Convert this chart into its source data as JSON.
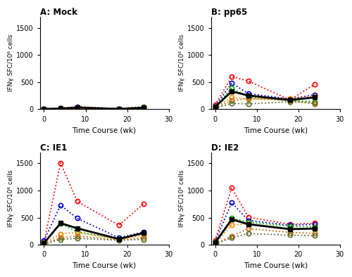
{
  "time_points": [
    0,
    4,
    8,
    18,
    24
  ],
  "panels": {
    "A": {
      "title": "A: Mock",
      "monkeys": [
        [
          10,
          20,
          50,
          10,
          50
        ],
        [
          5,
          15,
          40,
          8,
          30
        ],
        [
          8,
          18,
          35,
          12,
          40
        ],
        [
          6,
          12,
          30,
          6,
          35
        ],
        [
          4,
          10,
          25,
          5,
          20
        ],
        [
          3,
          8,
          20,
          4,
          15
        ]
      ],
      "geo_mean": [
        6,
        13,
        33,
        7,
        30
      ]
    },
    "B": {
      "title": "B: pp65",
      "monkeys": [
        [
          80,
          600,
          520,
          175,
          460
        ],
        [
          60,
          480,
          290,
          190,
          270
        ],
        [
          50,
          390,
          220,
          165,
          140
        ],
        [
          40,
          220,
          190,
          200,
          240
        ],
        [
          30,
          160,
          200,
          160,
          100
        ],
        [
          20,
          110,
          100,
          140,
          120
        ]
      ],
      "geo_mean": [
        45,
        330,
        255,
        170,
        220
      ]
    },
    "C": {
      "title": "C: IE1",
      "monkeys": [
        [
          50,
          1510,
          800,
          360,
          760
        ],
        [
          80,
          730,
          490,
          130,
          240
        ],
        [
          40,
          390,
          240,
          110,
          210
        ],
        [
          30,
          200,
          230,
          100,
          180
        ],
        [
          20,
          130,
          165,
          90,
          130
        ],
        [
          10,
          100,
          120,
          85,
          100
        ]
      ],
      "geo_mean": [
        32,
        400,
        305,
        108,
        220
      ]
    },
    "D": {
      "title": "D: IE2",
      "monkeys": [
        [
          80,
          1050,
          510,
          380,
          400
        ],
        [
          60,
          780,
          450,
          360,
          380
        ],
        [
          50,
          490,
          420,
          340,
          330
        ],
        [
          30,
          370,
          390,
          290,
          300
        ],
        [
          20,
          160,
          300,
          230,
          210
        ],
        [
          15,
          130,
          210,
          180,
          170
        ]
      ],
      "geo_mean": [
        38,
        470,
        380,
        290,
        300
      ]
    }
  },
  "colors": [
    "#ff0000",
    "#0000cc",
    "#00aa00",
    "#ff8800",
    "#cc6600",
    "#556b2f"
  ],
  "geo_mean_color": "#000000",
  "ylabel": "IFNγ SFC/10⁶ cells",
  "xlabel": "Time Course (wk)",
  "ylim": [
    0,
    1700
  ],
  "yticks": [
    0,
    500,
    1000,
    1500
  ],
  "xlim": [
    -1,
    30
  ],
  "xticks": [
    0,
    10,
    20,
    30
  ]
}
